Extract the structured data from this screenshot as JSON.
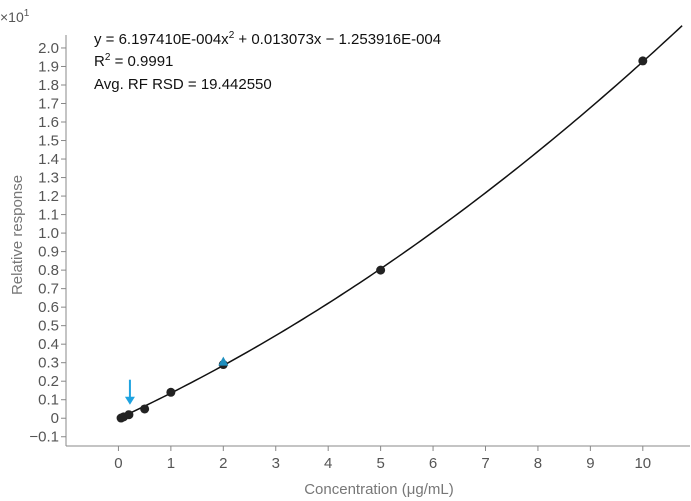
{
  "chart_data": {
    "type": "scatter",
    "xlabel": "Concentration (μg/mL)",
    "ylabel": "Relative response",
    "y_multiplier_base": "×10",
    "y_multiplier_exp": "1",
    "xlim": [
      -1.0,
      10.9
    ],
    "ylim": [
      -0.15,
      2.07
    ],
    "x_ticks": [
      0,
      1,
      2,
      3,
      4,
      5,
      6,
      7,
      8,
      9,
      10
    ],
    "x_tick_labels": [
      "0",
      "1",
      "2",
      "3",
      "4",
      "5",
      "6",
      "7",
      "8",
      "9",
      "10"
    ],
    "y_ticks": [
      -0.1,
      0,
      0.1,
      0.2,
      0.3,
      0.4,
      0.5,
      0.6,
      0.7,
      0.8,
      0.9,
      1.0,
      1.1,
      1.2,
      1.3,
      1.4,
      1.5,
      1.6,
      1.7,
      1.8,
      1.9,
      2.0
    ],
    "y_tick_labels": [
      "−0.1",
      "0",
      "0.1",
      "0.2",
      "0.3",
      "0.4",
      "0.5",
      "0.6",
      "0.7",
      "0.8",
      "0.9",
      "1.0",
      "1.1",
      "1.2",
      "1.3",
      "1.4",
      "1.5",
      "1.6",
      "1.7",
      "1.8",
      "1.9",
      "2.0"
    ],
    "points": [
      {
        "x": 0.05,
        "y": 0.001
      },
      {
        "x": 0.1,
        "y": 0.0075
      },
      {
        "x": 0.2,
        "y": 0.019
      },
      {
        "x": 0.5,
        "y": 0.05
      },
      {
        "x": 1,
        "y": 0.14
      },
      {
        "x": 2,
        "y": 0.29
      },
      {
        "x": 5,
        "y": 0.8
      },
      {
        "x": 10,
        "y": 1.93
      }
    ],
    "highlight_point": {
      "x": 2,
      "y": 0.295
    },
    "arrow_point": {
      "x": 0.2,
      "y": 0.019
    },
    "fit": {
      "a": 0.000619741,
      "b": 0.013073,
      "c": -0.0001253916
    },
    "annotations": {
      "equation_prefix": "y = 6.197410E-004x",
      "equation_sup": "2",
      "equation_suffix": " + 0.013073x − 1.253916E-004",
      "r2_prefix": "R",
      "r2_sup": "2",
      "r2_suffix": " = 0.9991",
      "rsd": "Avg. RF RSD = 19.442550"
    },
    "colors": {
      "points": "#222222",
      "curve": "#111111",
      "highlight": "#1f8fbf",
      "arrow": "#1fa3e0",
      "axis": "#888888"
    }
  }
}
